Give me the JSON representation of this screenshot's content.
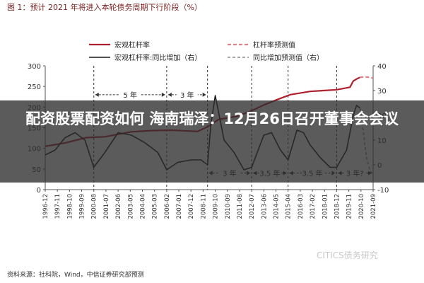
{
  "headline": "配资股票配资如何 海南瑞泽：12月26日召开董事会会议",
  "source": "资料来源：社科院，Wind，中信证券研究部预测",
  "watermark": "CITICS债务研究",
  "colors": {
    "leverage": "#b01f2e",
    "leverage_forecast": "#e0808a",
    "yoy": "#1a1a1a",
    "yoy_forecast": "#888888",
    "cycle_line": "#333333",
    "grid": "#dddddd",
    "axis": "#555555",
    "title": "#7a1f1f"
  },
  "chart_data": {
    "type": "line",
    "title": "图 1：预计 2021 年将进入本轮债务周期下行阶段（%）",
    "x_start": "1996-12",
    "x_end": "2021-09",
    "x_tick_labels": [
      "1996-12",
      "1997-11",
      "1998-10",
      "1999-09",
      "2000-08",
      "2001-07",
      "2002-06",
      "2003-05",
      "2004-04",
      "2005-03",
      "2006-02",
      "2007-01",
      "2007-12",
      "2008-11",
      "2009-10",
      "2010-09",
      "2011-08",
      "2012-07",
      "2013-06",
      "2014-05",
      "2015-04",
      "2016-03",
      "2017-02",
      "2018-01",
      "2018-12",
      "2019-11",
      "2020-10",
      "2021-09"
    ],
    "y_left": {
      "min": 0,
      "max": 300,
      "ticks": [
        0,
        50,
        100,
        150,
        200,
        250,
        300
      ]
    },
    "y_right": {
      "min": -10,
      "max": 40,
      "ticks": [
        -10,
        0,
        10,
        20,
        30,
        40
      ]
    },
    "legend": [
      {
        "name": "宏观杠杆率",
        "style": "solid",
        "color_key": "leverage"
      },
      {
        "name": "杠杆率预测值",
        "style": "dashed",
        "color_key": "leverage_forecast"
      },
      {
        "name": "宏观杠杆率:同比增加（右）",
        "style": "solid",
        "color_key": "yoy"
      },
      {
        "name": "同比增加预测值（右）",
        "style": "dashed",
        "color_key": "yoy_forecast"
      }
    ],
    "cycle_boundaries": [
      "2000-08",
      "2006-02",
      "2009-03",
      "2012-07",
      "2015-04",
      "2018-12"
    ],
    "cycles": [
      {
        "label": "5 年",
        "from": "2000-08",
        "to": "2006-02",
        "y": 230
      },
      {
        "label": "3 年",
        "from": "2006-02",
        "to": "2009-03",
        "y": 230
      },
      {
        "label": "3 年",
        "from": "2009-03",
        "to": "2012-07",
        "y": 40
      },
      {
        "label": "3.5 年",
        "from": "2012-07",
        "to": "2015-04",
        "y": 40
      },
      {
        "label": "3.5 年",
        "from": "2015-04",
        "to": "2018-12",
        "y": 40
      },
      {
        "label": "3 年?",
        "from": "2018-12",
        "to": "2021-09",
        "y": 40
      }
    ],
    "series": [
      {
        "name": "宏观杠杆率",
        "axis": "left",
        "x": [
          "1996-12",
          "1998-06",
          "2000-01",
          "2001-06",
          "2003-06",
          "2004-12",
          "2006-06",
          "2008-06",
          "2009-03",
          "2010-01",
          "2011-06",
          "2012-06",
          "2013-06",
          "2014-06",
          "2015-06",
          "2016-12",
          "2017-12",
          "2018-12",
          "2019-06",
          "2019-12",
          "2020-03",
          "2020-06",
          "2020-09"
        ],
        "values": [
          105,
          113,
          126,
          128,
          140,
          143,
          144,
          141,
          152,
          170,
          178,
          190,
          205,
          218,
          230,
          238,
          240,
          242,
          245,
          248,
          263,
          268,
          272
        ]
      },
      {
        "name": "杠杆率预测值",
        "axis": "left",
        "x": [
          "2020-09",
          "2020-12",
          "2021-03",
          "2021-06",
          "2021-09"
        ],
        "values": [
          272,
          273,
          273,
          272,
          270
        ]
      },
      {
        "name": "宏观杠杆率:同比增加（右）",
        "axis": "right",
        "x": [
          "1996-12",
          "1997-09",
          "1998-06",
          "1999-03",
          "1999-12",
          "2000-08",
          "2001-06",
          "2002-06",
          "2003-06",
          "2004-06",
          "2005-06",
          "2006-02",
          "2006-12",
          "2007-12",
          "2008-09",
          "2009-03",
          "2009-06",
          "2009-10",
          "2010-06",
          "2011-03",
          "2011-12",
          "2012-07",
          "2013-06",
          "2014-01",
          "2014-09",
          "2015-04",
          "2015-12",
          "2016-06",
          "2016-12",
          "2017-09",
          "2018-06",
          "2018-12",
          "2019-09",
          "2020-03",
          "2020-06",
          "2020-09"
        ],
        "values": [
          4,
          6,
          11,
          13,
          10,
          -1,
          5,
          13,
          12,
          9,
          5,
          -2,
          1,
          2,
          2,
          0,
          16,
          28,
          10,
          5,
          -2,
          -1,
          12,
          13,
          6,
          2,
          14,
          13,
          8,
          3,
          -1,
          -1,
          6,
          20,
          24,
          23
        ]
      },
      {
        "name": "同比增加预测值（右）",
        "axis": "right",
        "x": [
          "2020-09",
          "2020-12",
          "2021-03",
          "2021-06",
          "2021-09"
        ],
        "values": [
          23,
          14,
          3,
          -2,
          -4
        ]
      }
    ],
    "xlabel": "",
    "ylabel": ""
  }
}
